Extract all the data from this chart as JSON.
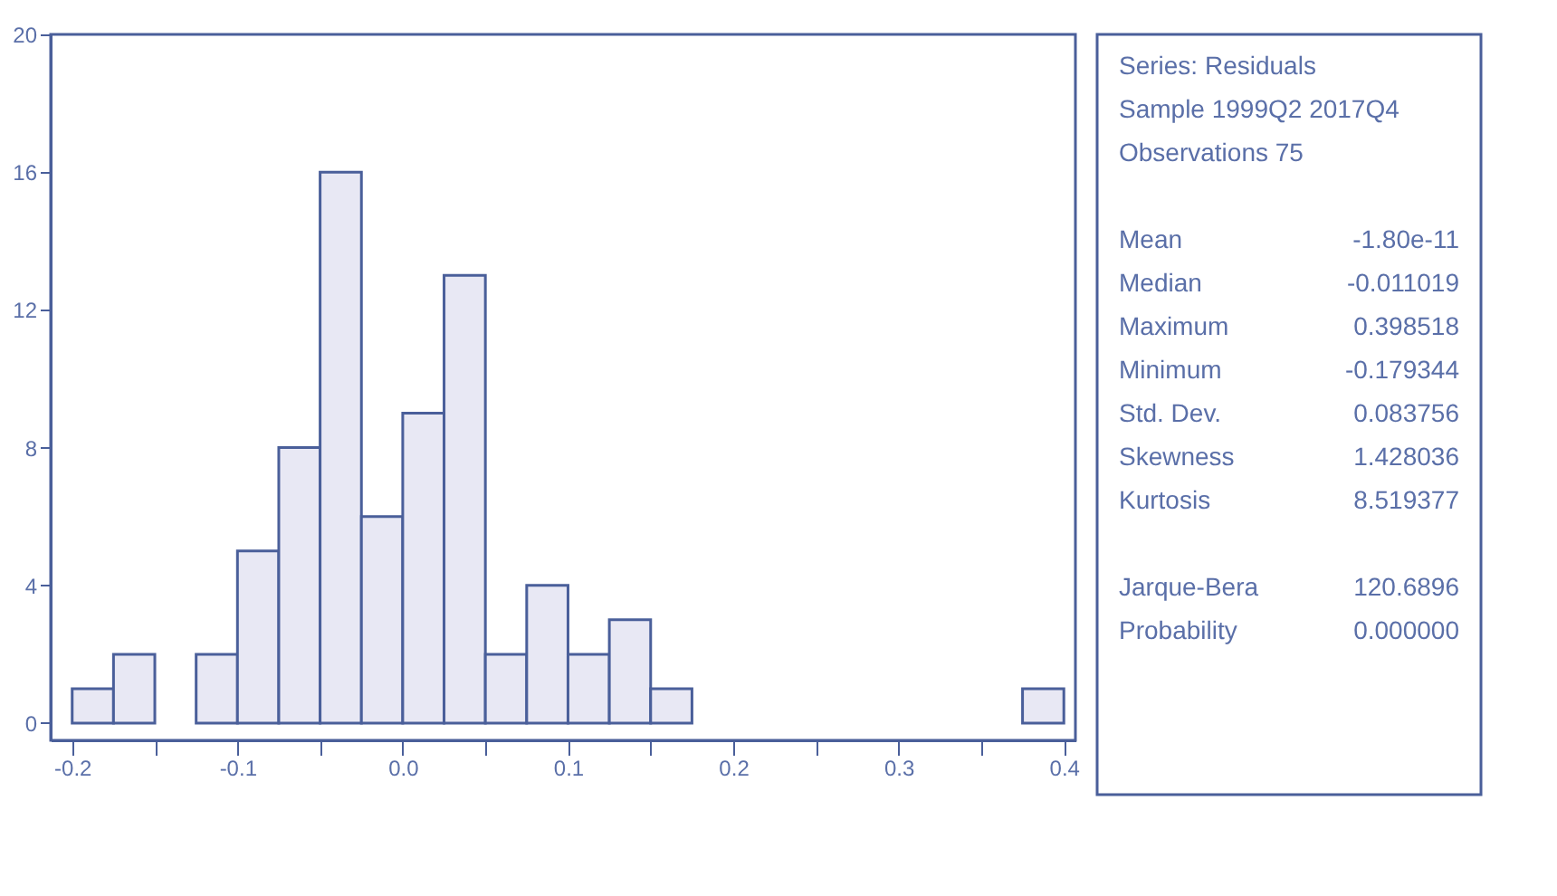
{
  "chart_data": [
    {
      "type": "histogram",
      "bins": [
        -0.2,
        -0.175,
        -0.15,
        -0.125,
        -0.1,
        -0.075,
        -0.05,
        -0.025,
        0,
        0.025,
        0.05,
        0.075,
        0.1,
        0.125,
        0.15,
        0.175,
        0.2,
        0.225,
        0.25,
        0.275,
        0.3,
        0.325,
        0.35,
        0.375,
        0.4
      ],
      "values": [
        1,
        2,
        0,
        2,
        5,
        8,
        16,
        6,
        9,
        13,
        2,
        4,
        2,
        3,
        1,
        0,
        0,
        0,
        0,
        0,
        0,
        0,
        0,
        1
      ],
      "color": "#e8e8f4",
      "xlim": [
        -0.213,
        0.407
      ],
      "ylim": [
        -0.5,
        20
      ],
      "xticks": [
        -0.2,
        {
          "value": -0.15,
          "label": null
        },
        -0.1,
        {
          "value": -0.05,
          "label": null
        },
        {
          "value": 0,
          "label": "0.0"
        },
        {
          "value": 0.05,
          "label": null
        },
        0.1,
        {
          "value": 0.15,
          "label": null
        },
        0.2,
        {
          "value": 0.25,
          "label": null
        },
        0.3,
        {
          "value": 0.35,
          "label": null
        },
        0.4
      ],
      "yticks": [
        0,
        4,
        8,
        12,
        16,
        20
      ],
      "grid": false
    },
    {
      "type": "other",
      "annotations": [
        "Series: Residuals",
        "Sample 1999Q2 2017Q4",
        "Observations 75",
        "Mean",
        "-1.80e-11",
        "Median",
        "-0.011019",
        "Maximum",
        "0.398518",
        "Minimum",
        "-0.179344",
        "Std. Dev.",
        "0.083756",
        "Skewness",
        "1.428036",
        "Kurtosis",
        "8.519377",
        "Jarque-Bera",
        "120.6896",
        "Probability",
        "0.000000"
      ]
    }
  ]
}
